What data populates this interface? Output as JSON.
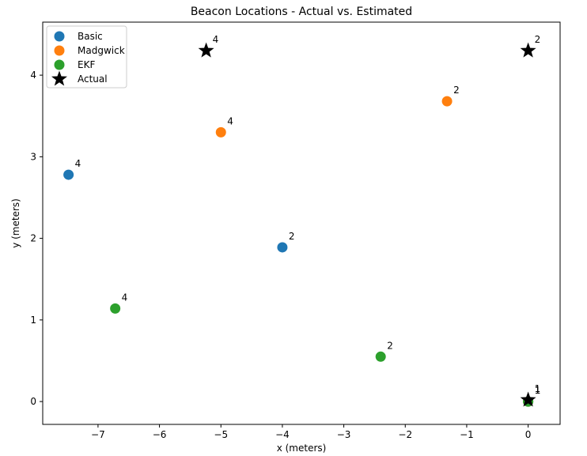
{
  "chart_data": {
    "type": "scatter",
    "title": "Beacon Locations - Actual vs. Estimated",
    "xlabel": "x (meters)",
    "ylabel": "y (meters)",
    "xlim": [
      -7.9,
      0.52
    ],
    "ylim": [
      -0.28,
      4.65
    ],
    "xticks": [
      -7,
      -6,
      -5,
      -4,
      -3,
      -2,
      -1,
      0
    ],
    "yticks": [
      0,
      1,
      2,
      3,
      4
    ],
    "legend_position": "top-left",
    "series": [
      {
        "name": "Basic",
        "marker": "circle",
        "color": "#1f77b4",
        "points": [
          {
            "x": -7.48,
            "y": 2.78,
            "label": "4"
          },
          {
            "x": -4.0,
            "y": 1.89,
            "label": "2"
          },
          {
            "x": 0.0,
            "y": 0.0,
            "label": "1"
          }
        ]
      },
      {
        "name": "Madgwick",
        "marker": "circle",
        "color": "#ff7f0e",
        "points": [
          {
            "x": -5.0,
            "y": 3.3,
            "label": "4"
          },
          {
            "x": -1.32,
            "y": 3.68,
            "label": "2"
          },
          {
            "x": 0.0,
            "y": 0.0,
            "label": "1"
          }
        ]
      },
      {
        "name": "EKF",
        "marker": "circle",
        "color": "#2ca02c",
        "points": [
          {
            "x": -6.72,
            "y": 1.14,
            "label": "4"
          },
          {
            "x": -2.4,
            "y": 0.55,
            "label": "2"
          },
          {
            "x": 0.0,
            "y": 0.0,
            "label": "1"
          }
        ]
      },
      {
        "name": "Actual",
        "marker": "star",
        "color": "#000000",
        "points": [
          {
            "x": -5.24,
            "y": 4.3,
            "label": "4"
          },
          {
            "x": 0.0,
            "y": 4.3,
            "label": "2"
          },
          {
            "x": 0.0,
            "y": 0.02,
            "label": "1"
          }
        ]
      }
    ]
  }
}
